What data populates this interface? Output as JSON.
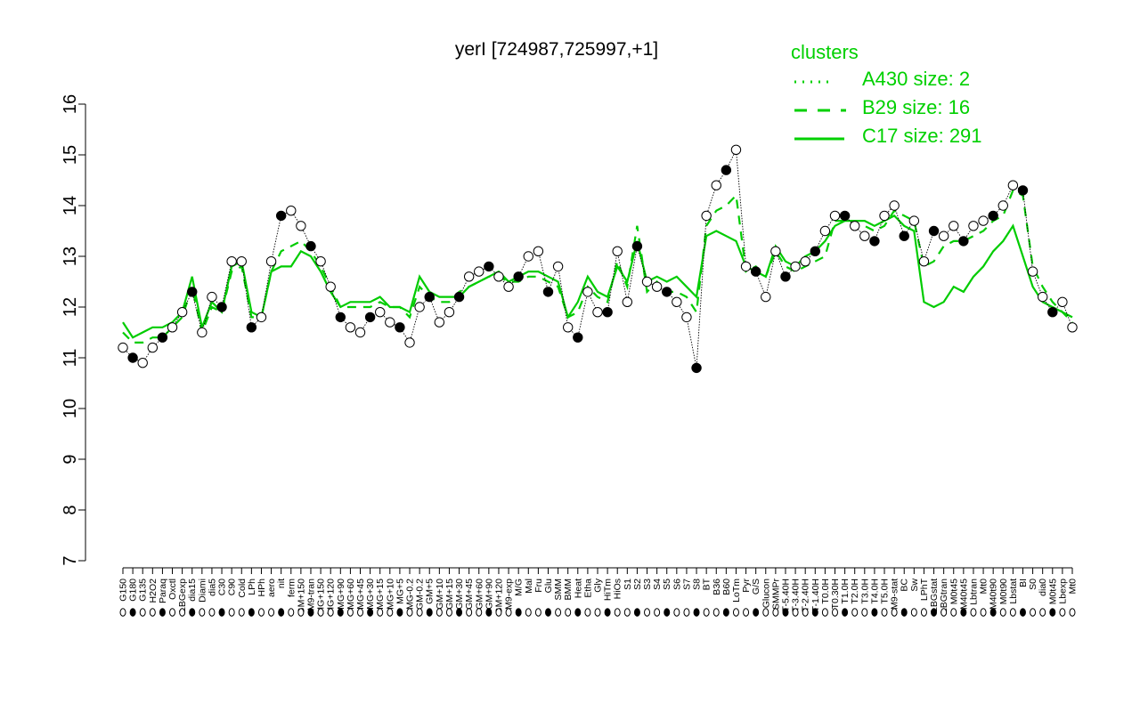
{
  "chart_data": {
    "type": "line",
    "title": "yerI [724987,725997,+1]",
    "xlabel": "",
    "ylabel": "",
    "ylim": [
      7,
      16
    ],
    "yticks": [
      7,
      8,
      9,
      10,
      11,
      12,
      13,
      14,
      15,
      16
    ],
    "x_tick_labels": [
      "G150",
      "G180",
      "G135",
      "H2O2",
      "Paraq",
      "Oxctl",
      "LBGexp",
      "dia15",
      "Diami",
      "dia5",
      "C30",
      "C90",
      "Cold",
      "LPh",
      "HPh",
      "aero",
      "nit",
      "ferm",
      "GM+150",
      "M9-tran",
      "MG+150",
      "MG+120",
      "MG+90",
      "MG+60",
      "MG+45",
      "MG+30",
      "MG+15",
      "MG+10",
      "MG+5",
      "MG-0.2",
      "GM-0.2",
      "GM+5",
      "GM+10",
      "GM+15",
      "GM+30",
      "GM+45",
      "GM+60",
      "GM+90",
      "GM+120",
      "M9-exp",
      "M/G",
      "Mal",
      "Fru",
      "Glu",
      "SMM",
      "BMM",
      "Heat",
      "Etha",
      "Gly",
      "HiTm",
      "HiOs",
      "S1",
      "S2",
      "S3",
      "S4",
      "S5",
      "S6",
      "S7",
      "S8",
      "BT",
      "B36",
      "B60",
      "LoTm",
      "Pyr",
      "G/S",
      "Glucon",
      "SMMPr",
      "T-5.40H",
      "T-3.40H",
      "T-2.40H",
      "T-1.40H",
      "T0.0H",
      "T0.30H",
      "T1.0H",
      "T2.0H",
      "T3.0H",
      "T4.0H",
      "T5.0H",
      "M9-stat",
      "BC",
      "Sw",
      "LPhT",
      "LBGstat",
      "LBGtran",
      "M0t45",
      "M40t45",
      "Lbtran",
      "Mt0",
      "M40t90",
      "M0t90",
      "Lbstat",
      "BI",
      "S0",
      "dia0",
      "M0t45b",
      "Lbexp",
      "Mt0b"
    ],
    "x_tick_display": [
      "G150",
      "G180",
      "G135",
      "H2O2",
      "Paraq",
      "Oxctl",
      "LBGexp",
      "dia15",
      "Diami",
      "dia5",
      "C30",
      "C90",
      "Cold",
      "LPh",
      "HPh",
      "aero",
      "nit",
      "ferm",
      "GM+150",
      "M9-tran",
      "MG+150",
      "MG+120",
      "MG+90",
      "MG+60",
      "MG+45",
      "MG+30",
      "MG+15",
      "MG+10",
      "MG+5",
      "MG-0.2",
      "GM-0.2",
      "GM+5",
      "GM+10",
      "GM+15",
      "GM+30",
      "GM+45",
      "GM+60",
      "GM+90",
      "GM+120",
      "M9-exp",
      "M/G",
      "Mal",
      "Fru",
      "Glu",
      "SMM",
      "BMM",
      "Heat",
      "Etha",
      "Gly",
      "HiTm",
      "HiOs",
      "S1",
      "S2",
      "S3",
      "S4",
      "S5",
      "S6",
      "S7",
      "S8",
      "BT",
      "B36",
      "B60",
      "LoTm",
      "Pyr",
      "G/S",
      "Glucon",
      "SMMPr",
      "T-5.40H",
      "T-3.40H",
      "T-2.40H",
      "T-1.40H",
      "T0.0H",
      "T0.30H",
      "T1.0H",
      "T2.0H",
      "T3.0H",
      "T4.0H",
      "T5.0H",
      "M9-stat",
      "BC",
      "Sw",
      "LPhT",
      "LBGstat",
      "LBGtran",
      "M0t45",
      "M40t45",
      "Lbtran",
      "Mt0",
      "M40t90",
      "M0t90",
      "Lbstat",
      "BI",
      "S0",
      "dia0",
      "M0t45",
      "Lbexp",
      "Mt0"
    ],
    "series": [
      {
        "name": "C17 size: 291",
        "style": "solid",
        "values": [
          11.7,
          11.4,
          11.5,
          11.6,
          11.6,
          11.7,
          11.9,
          12.6,
          11.6,
          12.1,
          11.9,
          12.8,
          12.9,
          11.9,
          11.8,
          12.7,
          12.8,
          12.8,
          13.1,
          13.0,
          12.7,
          12.3,
          12.0,
          12.1,
          12.1,
          12.1,
          12.2,
          12.0,
          12.0,
          11.9,
          12.6,
          12.3,
          12.2,
          12.2,
          12.2,
          12.4,
          12.5,
          12.6,
          12.7,
          12.5,
          12.6,
          12.7,
          12.7,
          12.6,
          12.5,
          11.8,
          12.1,
          12.6,
          12.3,
          12.2,
          12.8,
          12.5,
          13.3,
          12.5,
          12.6,
          12.5,
          12.6,
          12.4,
          12.2,
          13.4,
          13.5,
          13.4,
          13.3,
          12.8,
          12.7,
          12.6,
          13.2,
          12.9,
          12.8,
          13.0,
          13.1,
          13.3,
          13.6,
          13.7,
          13.7,
          13.7,
          13.6,
          13.7,
          13.8,
          13.6,
          13.5,
          12.1,
          12.0,
          12.1,
          12.4,
          12.3,
          12.6,
          12.8,
          13.1,
          13.3,
          13.6,
          13.0,
          12.4,
          12.1,
          12.0,
          11.9,
          11.8
        ]
      },
      {
        "name": "B29 size: 16",
        "style": "dashed",
        "values": [
          11.5,
          11.3,
          11.3,
          11.4,
          11.4,
          11.6,
          11.8,
          12.4,
          11.5,
          12.0,
          11.9,
          12.7,
          12.8,
          11.8,
          11.8,
          12.7,
          13.1,
          13.2,
          13.3,
          13.1,
          12.8,
          12.4,
          12.0,
          12.0,
          12.0,
          12.0,
          12.1,
          12.0,
          12.0,
          11.8,
          12.4,
          12.2,
          12.1,
          12.1,
          12.3,
          12.4,
          12.5,
          12.6,
          12.6,
          12.5,
          12.5,
          12.6,
          12.6,
          12.5,
          12.4,
          11.8,
          11.9,
          12.4,
          12.2,
          12.1,
          12.9,
          12.4,
          13.6,
          12.3,
          12.5,
          12.3,
          12.3,
          12.2,
          11.9,
          13.6,
          13.9,
          14.0,
          14.2,
          12.7,
          12.8,
          12.6,
          13.1,
          12.8,
          12.7,
          12.8,
          12.9,
          13.0,
          13.7,
          13.7,
          13.6,
          13.6,
          13.5,
          13.6,
          13.9,
          13.8,
          13.7,
          12.8,
          12.9,
          13.2,
          13.3,
          13.3,
          13.4,
          13.5,
          13.7,
          13.8,
          14.3,
          14.2,
          12.8,
          12.4,
          12.1,
          11.9,
          11.7
        ]
      },
      {
        "name": "A430 size: 2",
        "style": "dotted",
        "values": [
          11.2,
          11.0,
          10.9,
          11.2,
          11.4,
          11.6,
          11.9,
          12.3,
          11.5,
          12.2,
          12.0,
          12.9,
          12.9,
          11.6,
          11.8,
          12.9,
          13.8,
          13.9,
          13.6,
          13.2,
          12.9,
          12.4,
          11.8,
          11.6,
          11.5,
          11.8,
          11.9,
          11.7,
          11.6,
          11.3,
          12.0,
          12.2,
          11.7,
          11.9,
          12.2,
          12.6,
          12.7,
          12.8,
          12.6,
          12.4,
          12.6,
          13.0,
          13.1,
          12.3,
          12.8,
          11.6,
          11.4,
          12.3,
          11.9,
          11.9,
          13.1,
          12.1,
          13.2,
          12.5,
          12.4,
          12.3,
          12.1,
          11.8,
          10.8,
          13.8,
          14.4,
          14.7,
          15.1,
          12.8,
          12.7,
          12.2,
          13.1,
          12.6,
          12.8,
          12.9,
          13.1,
          13.5,
          13.8,
          13.8,
          13.6,
          13.4,
          13.3,
          13.8,
          14.0,
          13.4,
          13.7,
          12.9,
          13.5,
          13.4,
          13.6,
          13.3,
          13.6,
          13.7,
          13.8,
          14.0,
          14.4,
          14.3,
          12.7,
          12.2,
          11.9,
          12.1,
          11.6
        ]
      }
    ],
    "legend_title": "clusters",
    "legend_position": "top-right",
    "grid": false,
    "colors": {
      "series": "#000000",
      "legend": "#00d000",
      "cluster_line": "#00cc00",
      "point_fill_a": "#000000",
      "point_fill_b": "#ffffff"
    }
  }
}
